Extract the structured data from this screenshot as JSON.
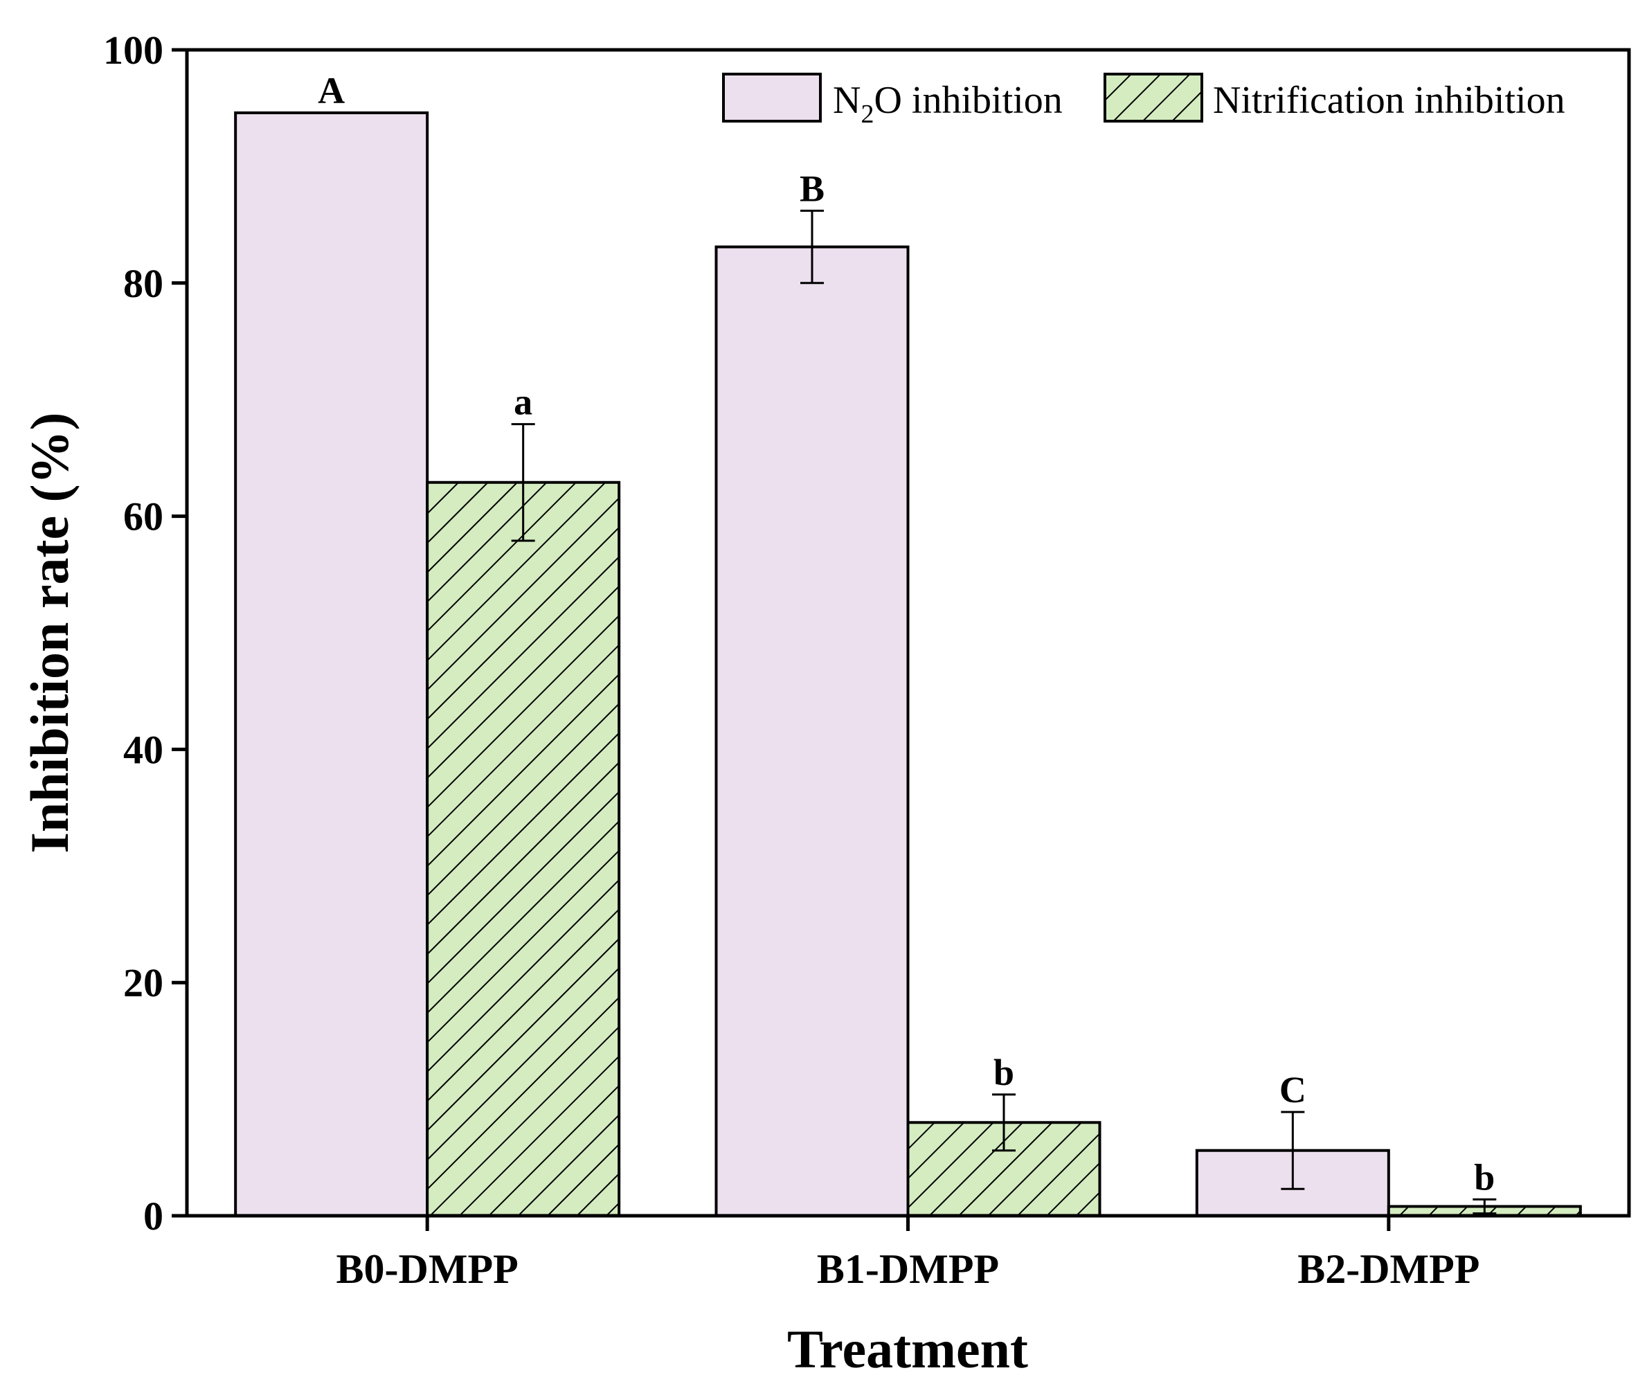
{
  "chart_data": {
    "type": "bar",
    "title": "",
    "xlabel": "Treatment",
    "ylabel": "Inhibition rate (%)",
    "ylim": [
      0,
      100
    ],
    "yticks": [
      "0",
      "20",
      "40",
      "60",
      "80",
      "100"
    ],
    "grid": false,
    "legend_position": "top-right",
    "categories": [
      "B0-DMPP",
      "B1-DMPP",
      "B2-DMPP"
    ],
    "series": [
      {
        "name": "N2O inhibition",
        "legend_main": "N",
        "legend_sub": "2",
        "legend_rest": "O inhibition",
        "color": "#ede0ee",
        "pattern": "solid",
        "values": [
          94.6,
          83.1,
          5.6
        ],
        "errors": [
          0.0,
          3.1,
          3.3
        ],
        "letters": [
          "A",
          "B",
          "C"
        ]
      },
      {
        "name": "Nitrification inhibition",
        "color": "#d4ecc0",
        "pattern": "diagonal-hatch",
        "values": [
          62.9,
          8.0,
          0.8
        ],
        "errors": [
          5.0,
          2.4,
          0.6
        ],
        "letters": [
          "a",
          "b",
          "b"
        ]
      }
    ]
  }
}
